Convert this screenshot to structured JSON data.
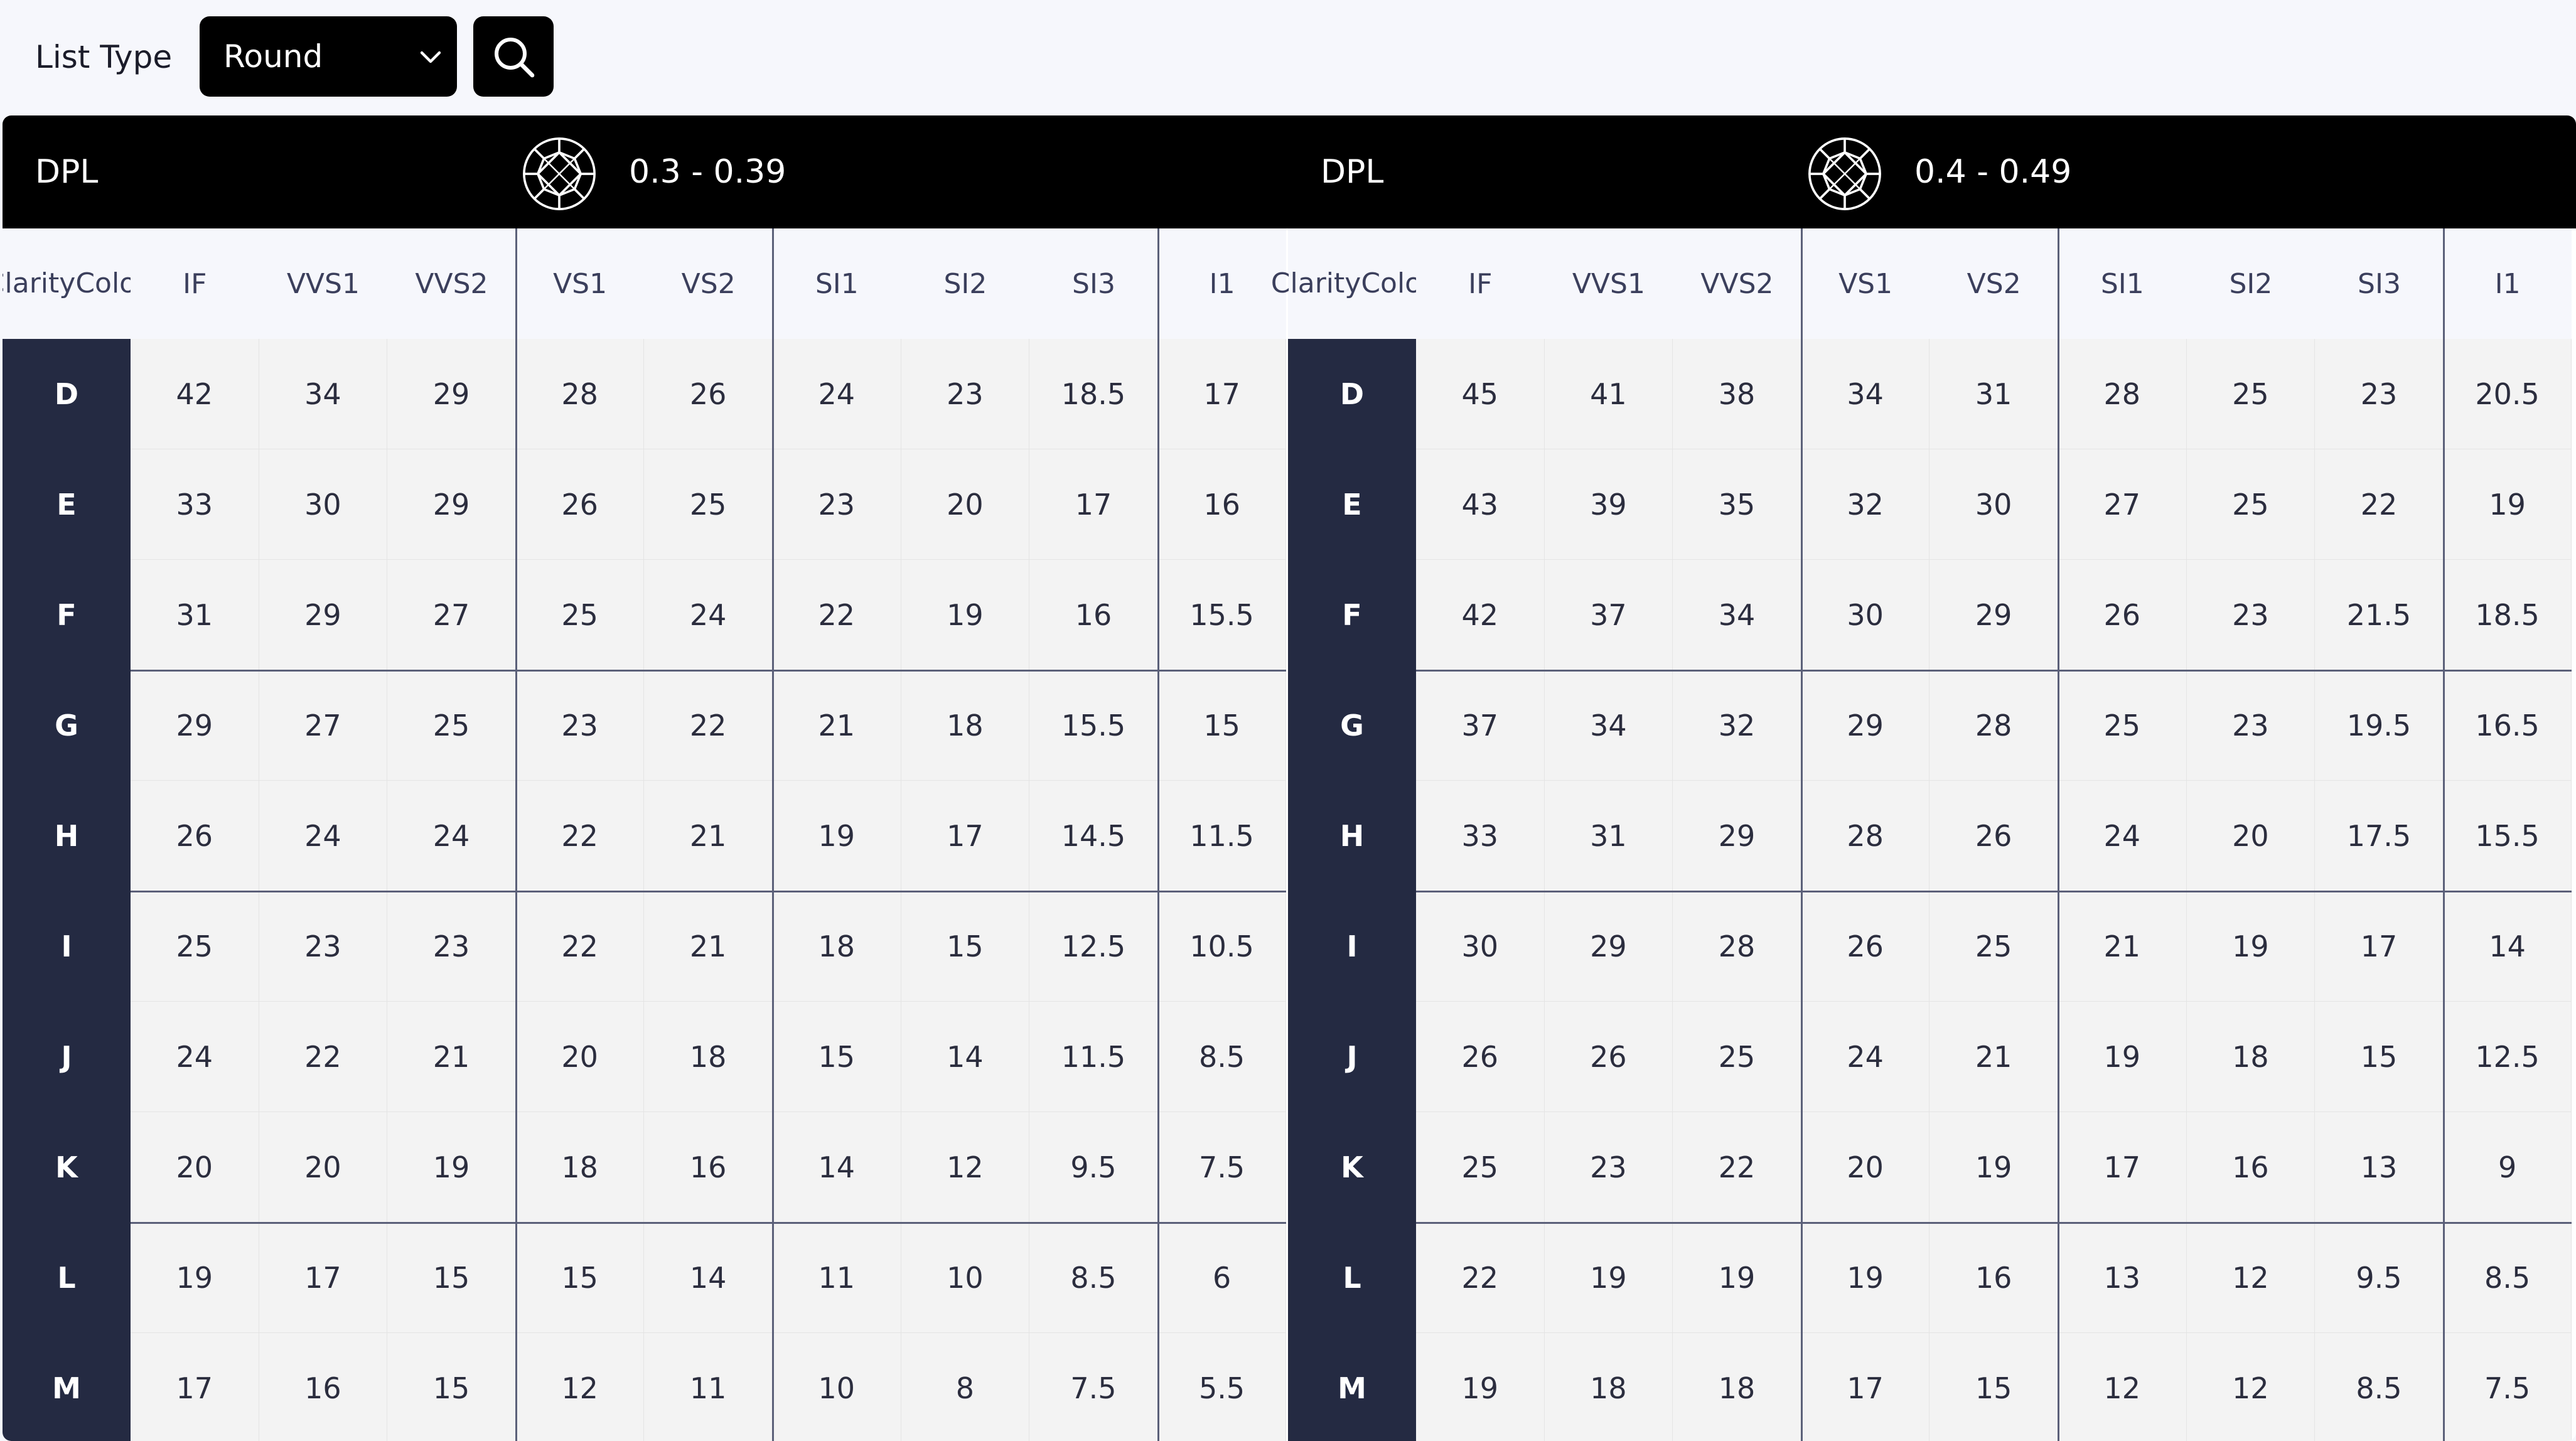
{
  "toolbar": {
    "list_type_label": "List Type",
    "list_type_value": "Round",
    "search_icon": "search-icon",
    "chevron_icon": "chevron-down-icon"
  },
  "colors": {
    "header_bar": "#000000",
    "color_column": "#242a42",
    "cell_bg": "#f3f3f3",
    "divider": "#5b6079"
  },
  "tables": [
    {
      "label": "DPL",
      "range": "0.3 - 0.39",
      "icon": "diamond-icon",
      "corner": [
        "Clarity",
        "Color"
      ],
      "columns": [
        "IF",
        "VVS1",
        "VVS2",
        "VS1",
        "VS2",
        "SI1",
        "SI2",
        "SI3",
        "I1"
      ],
      "rows": [
        {
          "color": "D",
          "values": [
            "42",
            "34",
            "29",
            "28",
            "26",
            "24",
            "23",
            "18.5",
            "17"
          ]
        },
        {
          "color": "E",
          "values": [
            "33",
            "30",
            "29",
            "26",
            "25",
            "23",
            "20",
            "17",
            "16"
          ]
        },
        {
          "color": "F",
          "values": [
            "31",
            "29",
            "27",
            "25",
            "24",
            "22",
            "19",
            "16",
            "15.5"
          ]
        },
        {
          "color": "G",
          "values": [
            "29",
            "27",
            "25",
            "23",
            "22",
            "21",
            "18",
            "15.5",
            "15"
          ]
        },
        {
          "color": "H",
          "values": [
            "26",
            "24",
            "24",
            "22",
            "21",
            "19",
            "17",
            "14.5",
            "11.5"
          ]
        },
        {
          "color": "I",
          "values": [
            "25",
            "23",
            "23",
            "22",
            "21",
            "18",
            "15",
            "12.5",
            "10.5"
          ]
        },
        {
          "color": "J",
          "values": [
            "24",
            "22",
            "21",
            "20",
            "18",
            "15",
            "14",
            "11.5",
            "8.5"
          ]
        },
        {
          "color": "K",
          "values": [
            "20",
            "20",
            "19",
            "18",
            "16",
            "14",
            "12",
            "9.5",
            "7.5"
          ]
        },
        {
          "color": "L",
          "values": [
            "19",
            "17",
            "15",
            "15",
            "14",
            "11",
            "10",
            "8.5",
            "6"
          ]
        },
        {
          "color": "M",
          "values": [
            "17",
            "16",
            "15",
            "12",
            "11",
            "10",
            "8",
            "7.5",
            "5.5"
          ]
        }
      ]
    },
    {
      "label": "DPL",
      "range": "0.4 - 0.49",
      "icon": "diamond-icon",
      "corner": [
        "Clarity",
        "Color"
      ],
      "columns": [
        "IF",
        "VVS1",
        "VVS2",
        "VS1",
        "VS2",
        "SI1",
        "SI2",
        "SI3",
        "I1"
      ],
      "rows": [
        {
          "color": "D",
          "values": [
            "45",
            "41",
            "38",
            "34",
            "31",
            "28",
            "25",
            "23",
            "20.5"
          ]
        },
        {
          "color": "E",
          "values": [
            "43",
            "39",
            "35",
            "32",
            "30",
            "27",
            "25",
            "22",
            "19"
          ]
        },
        {
          "color": "F",
          "values": [
            "42",
            "37",
            "34",
            "30",
            "29",
            "26",
            "23",
            "21.5",
            "18.5"
          ]
        },
        {
          "color": "G",
          "values": [
            "37",
            "34",
            "32",
            "29",
            "28",
            "25",
            "23",
            "19.5",
            "16.5"
          ]
        },
        {
          "color": "H",
          "values": [
            "33",
            "31",
            "29",
            "28",
            "26",
            "24",
            "20",
            "17.5",
            "15.5"
          ]
        },
        {
          "color": "I",
          "values": [
            "30",
            "29",
            "28",
            "26",
            "25",
            "21",
            "19",
            "17",
            "14"
          ]
        },
        {
          "color": "J",
          "values": [
            "26",
            "26",
            "25",
            "24",
            "21",
            "19",
            "18",
            "15",
            "12.5"
          ]
        },
        {
          "color": "K",
          "values": [
            "25",
            "23",
            "22",
            "20",
            "19",
            "17",
            "16",
            "13",
            "9"
          ]
        },
        {
          "color": "L",
          "values": [
            "22",
            "19",
            "19",
            "19",
            "16",
            "13",
            "12",
            "9.5",
            "8.5"
          ]
        },
        {
          "color": "M",
          "values": [
            "19",
            "18",
            "18",
            "17",
            "15",
            "12",
            "12",
            "8.5",
            "7.5"
          ]
        }
      ]
    }
  ]
}
